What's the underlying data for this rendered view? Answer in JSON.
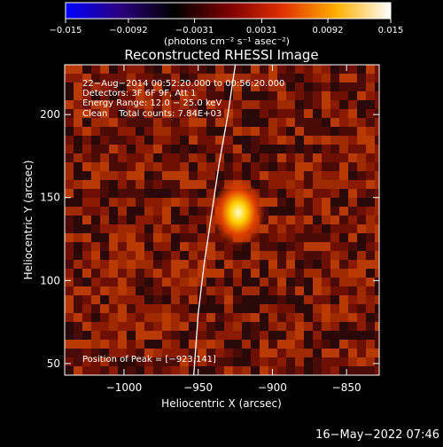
{
  "chart_data": {
    "type": "heatmap",
    "title": "Reconstructed RHESSI Image",
    "xlabel": "Heliocentric X (arcsec)",
    "ylabel": "Heliocentric Y (arcsec)",
    "xlim": [
      -1040,
      -828
    ],
    "ylim": [
      43,
      230
    ],
    "x_ticks": [
      -1000,
      -950,
      -900,
      -850
    ],
    "x_tick_labels": [
      "−1000",
      "−950",
      "−900",
      "−850"
    ],
    "y_ticks": [
      50,
      100,
      150,
      200
    ],
    "y_tick_labels": [
      "50",
      "100",
      "150",
      "200"
    ],
    "colorbar": {
      "range": [
        -0.015,
        0.015
      ],
      "ticks": [
        -0.015,
        -0.0092,
        -0.0031,
        0.0031,
        0.0092,
        0.015
      ],
      "tick_labels": [
        "−0.015",
        "−0.0092",
        "−0.0031",
        "0.0031",
        "0.0092",
        "0.015"
      ],
      "unit_label": "(photons cm⁻² s⁻¹ asec⁻²)",
      "colors": [
        "#0000ff",
        "#2a0080",
        "#000000",
        "#7a0000",
        "#e03000",
        "#ffb000",
        "#ffffff"
      ]
    },
    "annotations": [
      "22−Aug−2014 00:52:20.000 to 00:56:20.000",
      "Detectors: 3F 6F 9F, Att 1",
      "Energy Range: 12.0 − 25.0 keV",
      "Clean    Total counts: 7.84E+03"
    ],
    "peak_label": "Position of Peak = [−923,141]",
    "peak": {
      "x": -923,
      "y": 141,
      "value": 0.015
    },
    "limb_curve": [
      [
        -925,
        230
      ],
      [
        -930,
        200
      ],
      [
        -936,
        170
      ],
      [
        -941,
        140
      ],
      [
        -946,
        110
      ],
      [
        -950,
        80
      ],
      [
        -953,
        43
      ]
    ],
    "grid": false
  },
  "footer": {
    "date": "16−May−2022 07:46"
  }
}
